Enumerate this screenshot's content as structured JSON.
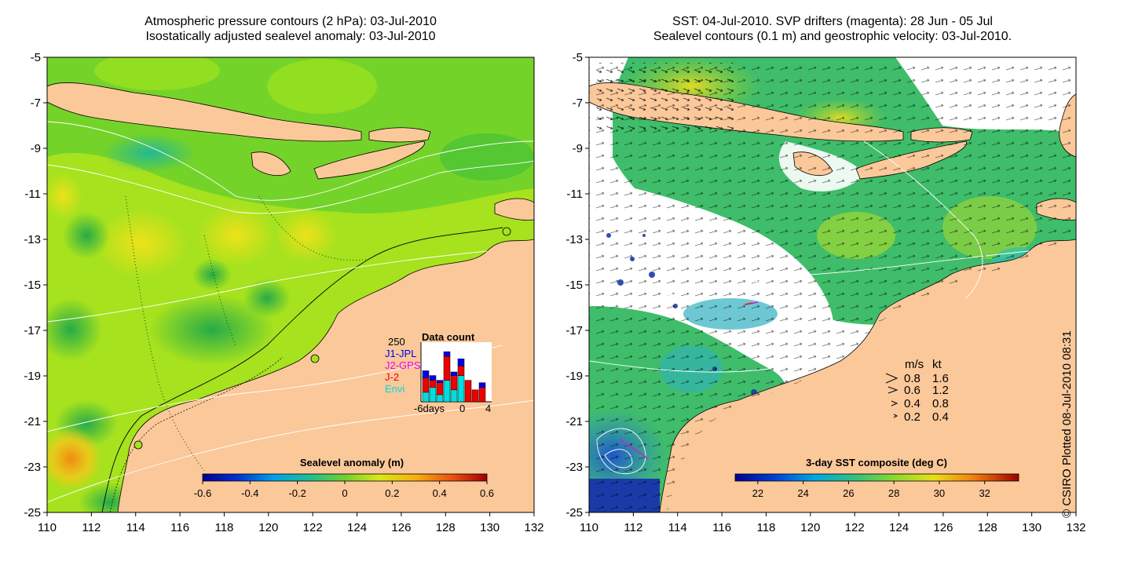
{
  "left_panel": {
    "title_line1": "Atmospheric pressure contours (2 hPa): 03-Jul-2010",
    "title_line2": "Isostatically adjusted sealevel anomaly: 03-Jul-2010",
    "x_ticks": [
      "110",
      "112",
      "114",
      "116",
      "118",
      "120",
      "122",
      "124",
      "126",
      "128",
      "130",
      "132"
    ],
    "y_ticks": [
      "-5",
      "-7",
      "-9",
      "-11",
      "-13",
      "-15",
      "-17",
      "-19",
      "-21",
      "-23",
      "-25"
    ],
    "colorbar": {
      "label": "Sealevel anomaly (m)",
      "ticks": [
        "-0.6",
        "-0.4",
        "-0.2",
        "0",
        "0.2",
        "0.4",
        "0.6"
      ],
      "range": [
        -0.6,
        0.6
      ]
    },
    "data_count": {
      "title": "Data count",
      "max_label": "250",
      "x_labels": [
        "-6days",
        "0",
        "4"
      ],
      "legend": [
        {
          "label": "J1-JPL",
          "color": "#0000ee"
        },
        {
          "label": "J2-GPS",
          "color": "#ee00ee"
        },
        {
          "label": "J-2",
          "color": "#ee0000"
        },
        {
          "label": "Envi",
          "color": "#00dddd"
        }
      ],
      "bars": [
        {
          "day": -5,
          "envi": 40,
          "j2": 60,
          "jpl": 30
        },
        {
          "day": -4,
          "envi": 60,
          "j2": 30,
          "jpl": 20
        },
        {
          "day": -3,
          "envi": 30,
          "j2": 50,
          "jpl": 10
        },
        {
          "day": -2,
          "envi": 90,
          "j2": 100,
          "jpl": 20
        },
        {
          "day": -1,
          "envi": 50,
          "j2": 60,
          "jpl": 15
        },
        {
          "day": 0,
          "envi": 110,
          "j2": 40,
          "jpl": 30
        },
        {
          "day": 1,
          "envi": 0,
          "j2": 90,
          "jpl": 0
        },
        {
          "day": 2,
          "envi": 0,
          "j2": 50,
          "jpl": 0
        },
        {
          "day": 3,
          "envi": 0,
          "j2": 60,
          "jpl": 20
        }
      ]
    }
  },
  "right_panel": {
    "title_line1": "SST: 04-Jul-2010. SVP drifters (magenta): 28 Jun - 05 Jul",
    "title_line2": "Sealevel contours (0.1 m) and geostrophic velocity: 03-Jul-2010.",
    "x_ticks": [
      "110",
      "112",
      "114",
      "116",
      "118",
      "120",
      "122",
      "124",
      "126",
      "128",
      "130",
      "132"
    ],
    "y_ticks": [
      "-5",
      "-7",
      "-9",
      "-11",
      "-13",
      "-15",
      "-17",
      "-19",
      "-21",
      "-23",
      "-25"
    ],
    "colorbar": {
      "label": "3-day SST composite (deg C)",
      "ticks": [
        "22",
        "24",
        "26",
        "28",
        "30",
        "32"
      ],
      "range": [
        21,
        33.5
      ]
    },
    "velocity_legend": {
      "header_ms": "m/s",
      "header_kt": "kt",
      "rows": [
        {
          "ms": "0.8",
          "kt": "1.6"
        },
        {
          "ms": "0.6",
          "kt": "1.2"
        },
        {
          "ms": "0.4",
          "kt": "0.8"
        },
        {
          "ms": "0.2",
          "kt": "0.4"
        }
      ]
    }
  },
  "credit": "© CSIRO Plotted 08-Jul-2010 08:31",
  "colors": {
    "land": "#fbc89a",
    "sla_base": "#a8e61e",
    "sst_base": "#39b86a",
    "ocean_blank": "#ffffff"
  }
}
